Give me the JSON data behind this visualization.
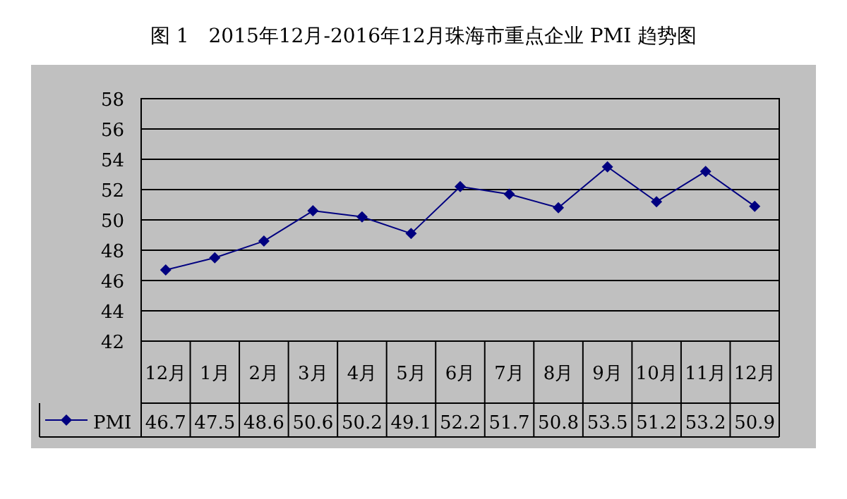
{
  "chart_data": {
    "type": "line",
    "title": "图 1　2015年12月-2016年12月珠海市重点企业 PMI 趋势图",
    "categories": [
      "12月",
      "1月",
      "2月",
      "3月",
      "4月",
      "5月",
      "6月",
      "7月",
      "8月",
      "9月",
      "10月",
      "11月",
      "12月"
    ],
    "series": [
      {
        "name": "PMI",
        "color": "#000080",
        "values": [
          46.7,
          47.5,
          48.6,
          50.6,
          50.2,
          49.1,
          52.2,
          51.7,
          50.8,
          53.5,
          51.2,
          53.2,
          50.9
        ]
      }
    ],
    "ylim": [
      42,
      58
    ],
    "yticks": [
      42,
      44,
      46,
      48,
      50,
      52,
      54,
      56,
      58
    ],
    "grid": "y",
    "marker": "diamond",
    "line_style": "solid",
    "data_labels": true,
    "legend": "bottom"
  }
}
